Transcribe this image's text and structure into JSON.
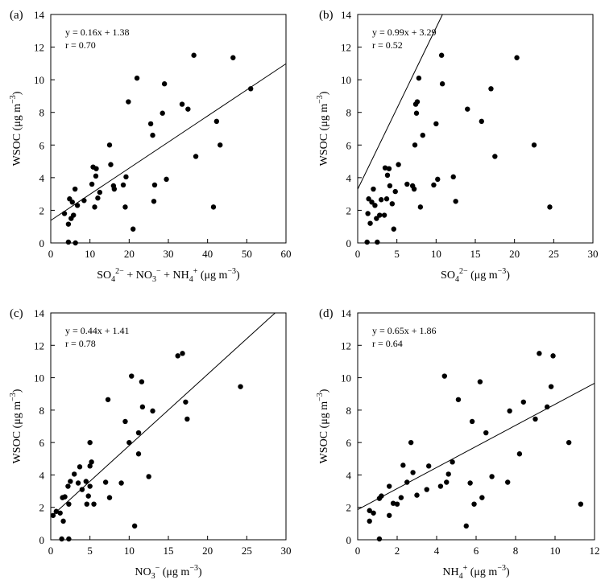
{
  "chart_data": [
    {
      "panel_label": "(a)",
      "type": "scatter",
      "xlabel_parts": [
        {
          "t": "SO"
        },
        {
          "t": "4",
          "sub": true
        },
        {
          "t": "2−",
          "sup": true
        },
        {
          "t": " + NO"
        },
        {
          "t": "3",
          "sub": true
        },
        {
          "t": "−",
          "sup": true
        },
        {
          "t": " + NH"
        },
        {
          "t": "4",
          "sub": true
        },
        {
          "t": "+",
          "sup": true
        },
        {
          "t": " (μg m"
        },
        {
          "t": "−3",
          "sup": true
        },
        {
          "t": ")"
        }
      ],
      "ylabel": "WSOC (μg m",
      "ylabel_sup": "−3",
      "ylabel_close": ")",
      "xlim": [
        0,
        60
      ],
      "ylim": [
        0,
        14
      ],
      "xticks": [
        0,
        10,
        20,
        30,
        40,
        50,
        60
      ],
      "yticks": [
        0,
        2,
        4,
        6,
        8,
        10,
        12,
        14
      ],
      "equation": "y = 0.16x + 1.38",
      "r_text": "r = 0.70",
      "fit": {
        "slope": 0.16,
        "intercept": 1.38
      },
      "points": [
        [
          3.5,
          1.8
        ],
        [
          4.5,
          1.15
        ],
        [
          4.8,
          2.7
        ],
        [
          5.2,
          1.5
        ],
        [
          5.5,
          2.5
        ],
        [
          5.8,
          1.7
        ],
        [
          6.2,
          3.3
        ],
        [
          4.5,
          0.05
        ],
        [
          6.3,
          0.0
        ],
        [
          6.8,
          2.3
        ],
        [
          8.5,
          2.6
        ],
        [
          10.5,
          3.6
        ],
        [
          10.8,
          4.65
        ],
        [
          11.2,
          2.2
        ],
        [
          11.5,
          4.1
        ],
        [
          11.6,
          4.55
        ],
        [
          12,
          2.75
        ],
        [
          12.5,
          3.1
        ],
        [
          15,
          6.0
        ],
        [
          15.3,
          4.8
        ],
        [
          16,
          3.5
        ],
        [
          16.2,
          3.3
        ],
        [
          18.5,
          3.55
        ],
        [
          19,
          2.2
        ],
        [
          19.2,
          4.05
        ],
        [
          19.8,
          8.65
        ],
        [
          21,
          0.85
        ],
        [
          22,
          10.1
        ],
        [
          25.5,
          7.3
        ],
        [
          26,
          6.6
        ],
        [
          26.5,
          3.55
        ],
        [
          26.3,
          2.55
        ],
        [
          28.5,
          7.95
        ],
        [
          29,
          9.75
        ],
        [
          29.5,
          3.9
        ],
        [
          33.5,
          8.5
        ],
        [
          35,
          8.2
        ],
        [
          36.5,
          11.5
        ],
        [
          37,
          5.3
        ],
        [
          41.5,
          2.2
        ],
        [
          42.3,
          7.45
        ],
        [
          43.2,
          6.0
        ],
        [
          46.5,
          11.35
        ],
        [
          51,
          9.45
        ]
      ]
    },
    {
      "panel_label": "(b)",
      "type": "scatter",
      "xlabel_parts": [
        {
          "t": "SO"
        },
        {
          "t": "4",
          "sub": true
        },
        {
          "t": "2−",
          "sup": true
        },
        {
          "t": " (μg m"
        },
        {
          "t": "−3",
          "sup": true
        },
        {
          "t": ")"
        }
      ],
      "ylabel": "WSOC (μg m",
      "ylabel_sup": "−3",
      "ylabel_close": ")",
      "xlim": [
        0,
        30
      ],
      "ylim": [
        0,
        14
      ],
      "xticks": [
        0,
        5,
        10,
        15,
        20,
        25,
        30
      ],
      "yticks": [
        0,
        2,
        4,
        6,
        8,
        10,
        12,
        14
      ],
      "equation": "y = 0.99x + 3.29",
      "r_text": "r = 0.52",
      "fit": {
        "slope": 0.99,
        "intercept": 3.29
      },
      "points": [
        [
          1.2,
          0.05
        ],
        [
          1.3,
          1.8
        ],
        [
          1.4,
          2.7
        ],
        [
          1.6,
          1.2
        ],
        [
          1.8,
          2.5
        ],
        [
          2.0,
          3.3
        ],
        [
          2.2,
          2.3
        ],
        [
          2.4,
          1.5
        ],
        [
          2.5,
          0.05
        ],
        [
          2.8,
          1.7
        ],
        [
          3.0,
          2.65
        ],
        [
          3.4,
          1.7
        ],
        [
          3.5,
          4.6
        ],
        [
          3.7,
          2.7
        ],
        [
          3.8,
          4.15
        ],
        [
          4.0,
          4.55
        ],
        [
          4.1,
          3.5
        ],
        [
          4.4,
          2.4
        ],
        [
          4.6,
          0.85
        ],
        [
          4.8,
          3.15
        ],
        [
          5.2,
          4.8
        ],
        [
          6.3,
          3.6
        ],
        [
          7.0,
          3.5
        ],
        [
          7.2,
          3.3
        ],
        [
          7.3,
          6.0
        ],
        [
          7.4,
          8.5
        ],
        [
          7.5,
          7.95
        ],
        [
          7.6,
          8.65
        ],
        [
          7.8,
          10.1
        ],
        [
          8.0,
          2.2
        ],
        [
          8.3,
          6.6
        ],
        [
          9.7,
          3.55
        ],
        [
          10.0,
          7.3
        ],
        [
          10.2,
          3.9
        ],
        [
          10.7,
          11.5
        ],
        [
          10.8,
          9.75
        ],
        [
          12.2,
          4.05
        ],
        [
          12.5,
          2.55
        ],
        [
          14.0,
          8.2
        ],
        [
          15.8,
          7.45
        ],
        [
          17.0,
          9.45
        ],
        [
          17.5,
          5.3
        ],
        [
          20.3,
          11.35
        ],
        [
          22.5,
          6.0
        ],
        [
          24.5,
          2.2
        ]
      ]
    },
    {
      "panel_label": "(c)",
      "type": "scatter",
      "xlabel_parts": [
        {
          "t": "NO"
        },
        {
          "t": "3",
          "sub": true
        },
        {
          "t": "−",
          "sup": true
        },
        {
          "t": " (μg m"
        },
        {
          "t": "−3",
          "sup": true
        },
        {
          "t": ")"
        }
      ],
      "ylabel": "WSOC (μg m",
      "ylabel_sup": "−3",
      "ylabel_close": ")",
      "xlim": [
        0,
        30
      ],
      "ylim": [
        0,
        14
      ],
      "xticks": [
        0,
        5,
        10,
        15,
        20,
        25,
        30
      ],
      "yticks": [
        0,
        2,
        4,
        6,
        8,
        10,
        12,
        14
      ],
      "equation": "y = 0.44x + 1.41",
      "r_text": "r = 0.78",
      "fit": {
        "slope": 0.44,
        "intercept": 1.41
      },
      "points": [
        [
          0.3,
          1.5
        ],
        [
          0.7,
          1.75
        ],
        [
          1.2,
          1.65
        ],
        [
          1.4,
          0.05
        ],
        [
          1.5,
          2.6
        ],
        [
          1.6,
          1.15
        ],
        [
          1.8,
          2.65
        ],
        [
          2.2,
          3.3
        ],
        [
          2.3,
          2.2
        ],
        [
          2.3,
          0.05
        ],
        [
          2.5,
          3.6
        ],
        [
          3.0,
          4.05
        ],
        [
          3.5,
          3.5
        ],
        [
          3.7,
          4.5
        ],
        [
          4.0,
          3.1
        ],
        [
          4.5,
          3.6
        ],
        [
          4.6,
          2.2
        ],
        [
          4.8,
          2.7
        ],
        [
          5.0,
          4.55
        ],
        [
          5.0,
          6.0
        ],
        [
          5.0,
          3.3
        ],
        [
          5.2,
          4.8
        ],
        [
          5.5,
          2.2
        ],
        [
          7.0,
          3.55
        ],
        [
          7.3,
          8.65
        ],
        [
          7.5,
          2.6
        ],
        [
          9.0,
          3.5
        ],
        [
          9.5,
          7.3
        ],
        [
          10.0,
          6.0
        ],
        [
          10.3,
          10.1
        ],
        [
          10.7,
          0.85
        ],
        [
          11.2,
          5.3
        ],
        [
          11.2,
          6.6
        ],
        [
          11.6,
          9.75
        ],
        [
          11.7,
          8.2
        ],
        [
          12.5,
          3.9
        ],
        [
          13.0,
          7.95
        ],
        [
          16.2,
          11.35
        ],
        [
          16.8,
          11.5
        ],
        [
          17.2,
          8.5
        ],
        [
          17.4,
          7.45
        ],
        [
          24.2,
          9.45
        ]
      ]
    },
    {
      "panel_label": "(d)",
      "type": "scatter",
      "xlabel_parts": [
        {
          "t": "NH"
        },
        {
          "t": "4",
          "sub": true
        },
        {
          "t": "+",
          "sup": true
        },
        {
          "t": " (μg m"
        },
        {
          "t": "−3",
          "sup": true
        },
        {
          "t": ")"
        }
      ],
      "ylabel": "WSOC (μg m",
      "ylabel_sup": "−3",
      "ylabel_close": ")",
      "xlim": [
        0,
        12
      ],
      "ylim": [
        0,
        14
      ],
      "xticks": [
        0,
        2,
        4,
        6,
        8,
        10,
        12
      ],
      "yticks": [
        0,
        2,
        4,
        6,
        8,
        10,
        12,
        14
      ],
      "equation": "y = 0.65x + 1.86",
      "r_text": "r = 0.64",
      "fit": {
        "slope": 0.65,
        "intercept": 1.86
      },
      "points": [
        [
          0.6,
          1.15
        ],
        [
          0.6,
          1.8
        ],
        [
          0.8,
          1.65
        ],
        [
          1.1,
          0.05
        ],
        [
          1.1,
          2.55
        ],
        [
          1.2,
          2.7
        ],
        [
          1.6,
          3.3
        ],
        [
          1.6,
          1.5
        ],
        [
          1.8,
          2.25
        ],
        [
          2.0,
          2.2
        ],
        [
          2.2,
          2.6
        ],
        [
          2.3,
          4.6
        ],
        [
          2.5,
          3.55
        ],
        [
          2.7,
          6.0
        ],
        [
          2.8,
          4.15
        ],
        [
          3.0,
          2.75
        ],
        [
          3.5,
          3.1
        ],
        [
          3.6,
          4.55
        ],
        [
          4.2,
          3.3
        ],
        [
          4.4,
          10.1
        ],
        [
          4.5,
          3.55
        ],
        [
          4.6,
          4.05
        ],
        [
          4.8,
          4.8
        ],
        [
          5.1,
          8.65
        ],
        [
          5.5,
          0.85
        ],
        [
          5.7,
          3.5
        ],
        [
          5.8,
          7.3
        ],
        [
          5.9,
          2.2
        ],
        [
          6.2,
          9.75
        ],
        [
          6.3,
          2.6
        ],
        [
          6.5,
          6.6
        ],
        [
          6.8,
          3.9
        ],
        [
          7.6,
          3.55
        ],
        [
          7.7,
          7.95
        ],
        [
          8.2,
          5.3
        ],
        [
          8.4,
          8.5
        ],
        [
          9.0,
          7.45
        ],
        [
          9.2,
          11.5
        ],
        [
          9.6,
          8.2
        ],
        [
          9.8,
          9.45
        ],
        [
          9.9,
          11.35
        ],
        [
          10.7,
          6.0
        ],
        [
          11.3,
          2.2
        ]
      ]
    }
  ]
}
